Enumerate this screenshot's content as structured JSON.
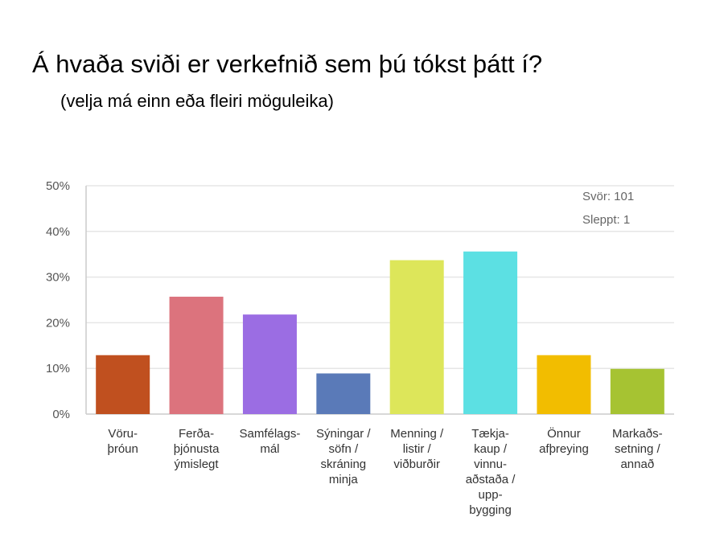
{
  "title": "Á hvaða sviði er verkefnið sem þú tókst þátt í?",
  "subtitle": "(velja má einn eða fleiri möguleika)",
  "chart_data": {
    "type": "bar",
    "categories": [
      [
        "Vöru-",
        "þróun"
      ],
      [
        "Ferða-",
        "þjónusta",
        "ýmislegt"
      ],
      [
        "Samfélags-",
        "mál"
      ],
      [
        "Sýningar /",
        "söfn /",
        "skráning",
        "minja"
      ],
      [
        "Menning /",
        "listir /",
        "viðburðir"
      ],
      [
        "Tækja-",
        "kaup /",
        "vinnu-",
        "aðstaða /",
        "upp-",
        "bygging"
      ],
      [
        "Önnur",
        "afþreying"
      ],
      [
        "Markaðs-",
        "setning /",
        "annað"
      ]
    ],
    "values": [
      12.9,
      25.7,
      21.8,
      8.9,
      33.7,
      35.6,
      12.9,
      9.9
    ],
    "colors": [
      "#c0501f",
      "#dc737d",
      "#9b6de3",
      "#5a7ab8",
      "#dde65a",
      "#5ce0e3",
      "#f2bd00",
      "#a6c332"
    ],
    "ylim": [
      0,
      50
    ],
    "yticks": [
      "0%",
      "10%",
      "20%",
      "30%",
      "40%",
      "50%"
    ],
    "grid": true,
    "annotations": [
      "Svör: 101",
      "Sleppt: 1"
    ]
  }
}
